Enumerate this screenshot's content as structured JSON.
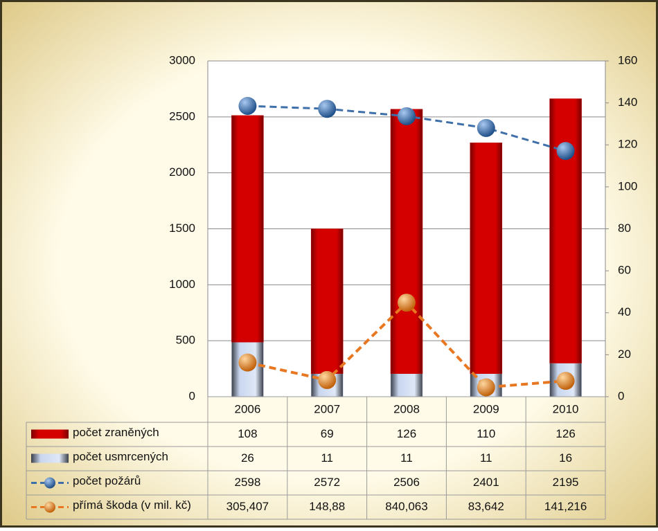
{
  "chart_data": {
    "type": "bar-line",
    "categories": [
      "2006",
      "2007",
      "2008",
      "2009",
      "2010"
    ],
    "series": [
      {
        "name": "počet zraněných",
        "type": "bar",
        "axis": "y2",
        "color": "#c00000",
        "values": [
          108,
          69,
          126,
          110,
          126
        ]
      },
      {
        "name": "počet usmrcených",
        "type": "bar",
        "axis": "y2",
        "color": "#b8c8e0",
        "values": [
          26,
          11,
          11,
          11,
          16
        ]
      },
      {
        "name": "počet požárů",
        "type": "line",
        "axis": "y",
        "color": "#3f6fa8",
        "values": [
          2598,
          2572,
          2506,
          2401,
          2195
        ]
      },
      {
        "name": "přímá škoda (v mil. kč)",
        "type": "line",
        "axis": "y",
        "color": "#e87722",
        "values": [
          305.407,
          148.88,
          840.063,
          83.642,
          141.216
        ],
        "value_labels": [
          "305,407",
          "148,88",
          "840,063",
          "83,642",
          "141,216"
        ]
      }
    ],
    "stacked": true,
    "ylim": [
      0,
      3000
    ],
    "yticks": [
      0,
      500,
      1000,
      1500,
      2000,
      2500,
      3000
    ],
    "y2lim": [
      0,
      160
    ],
    "y2ticks": [
      0,
      20,
      40,
      60,
      80,
      100,
      120,
      140,
      160
    ],
    "grid": true
  }
}
